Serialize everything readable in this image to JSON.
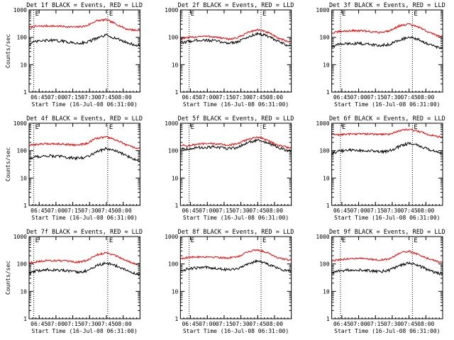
{
  "figure": {
    "background": "#ffffff",
    "axis_color": "#000000",
    "events_color": "#000000",
    "lld_color": "#ee0000",
    "marker_label": "E"
  },
  "chart_data": [
    {
      "type": "line",
      "title": "Det 1f BLACK = Events, RED = LLD",
      "ylabel": "Counts/sec",
      "xlabel": "Start Time (16-Jul-08 06:31:00)",
      "yscale": "log",
      "ylim": [
        1,
        1000
      ],
      "y_ticks": [
        "1",
        "10",
        "100",
        "1000"
      ],
      "xlim": [
        6.6,
        8.25
      ],
      "x_ticks": [
        "06:45",
        "07:00",
        "07:15",
        "07:30",
        "07:45",
        "08:00"
      ],
      "markers": [
        6.67,
        7.77
      ],
      "series": [
        {
          "name": "RED = LLD",
          "x": [
            6.6,
            6.7,
            6.9,
            7.1,
            7.3,
            7.45,
            7.6,
            7.75,
            7.9,
            8.05,
            8.2
          ],
          "values": [
            230,
            250,
            260,
            250,
            235,
            260,
            400,
            440,
            300,
            200,
            180
          ]
        },
        {
          "name": "BLACK = Events",
          "x": [
            6.6,
            6.7,
            6.9,
            7.1,
            7.3,
            7.45,
            7.6,
            7.75,
            7.9,
            8.05,
            8.2
          ],
          "values": [
            55,
            70,
            78,
            72,
            60,
            65,
            90,
            120,
            90,
            65,
            50
          ]
        }
      ]
    },
    {
      "type": "line",
      "title": "Det 2f BLACK = Events, RED = LLD",
      "ylabel": "",
      "xlabel": "Start Time (16-Jul-08 06:31:00)",
      "yscale": "log",
      "ylim": [
        1,
        1000
      ],
      "y_ticks": [
        "1",
        "10",
        "100",
        "1000"
      ],
      "xlim": [
        6.6,
        8.25
      ],
      "x_ticks": [
        "06:45",
        "07:00",
        "07:15",
        "07:30",
        "07:45",
        "08:00"
      ],
      "markers": [
        6.73,
        7.8
      ],
      "series": [
        {
          "name": "RED = LLD",
          "x": [
            6.6,
            6.7,
            6.9,
            7.1,
            7.3,
            7.45,
            7.6,
            7.75,
            7.9,
            8.05,
            8.2
          ],
          "values": [
            90,
            95,
            110,
            105,
            85,
            95,
            150,
            190,
            150,
            95,
            70
          ]
        },
        {
          "name": "BLACK = Events",
          "x": [
            6.6,
            6.7,
            6.9,
            7.1,
            7.3,
            7.45,
            7.6,
            7.75,
            7.9,
            8.05,
            8.2
          ],
          "values": [
            60,
            70,
            80,
            75,
            62,
            68,
            100,
            140,
            110,
            70,
            50
          ]
        }
      ]
    },
    {
      "type": "line",
      "title": "Det 3f BLACK = Events, RED = LLD",
      "ylabel": "",
      "xlabel": "Start Time (16-Jul-08 06:31:00)",
      "yscale": "log",
      "ylim": [
        1,
        1000
      ],
      "y_ticks": [
        "1",
        "10",
        "100",
        "1000"
      ],
      "xlim": [
        6.6,
        8.25
      ],
      "x_ticks": [
        "06:45",
        "07:00",
        "07:15",
        "07:30",
        "07:45",
        "08:00"
      ],
      "markers": [
        6.73,
        7.8
      ],
      "series": [
        {
          "name": "RED = LLD",
          "x": [
            6.6,
            6.7,
            6.9,
            7.1,
            7.3,
            7.45,
            7.6,
            7.75,
            7.9,
            8.05,
            8.2
          ],
          "values": [
            140,
            160,
            175,
            170,
            150,
            170,
            260,
            300,
            230,
            150,
            110
          ]
        },
        {
          "name": "BLACK = Events",
          "x": [
            6.6,
            6.7,
            6.9,
            7.1,
            7.3,
            7.45,
            7.6,
            7.75,
            7.9,
            8.05,
            8.2
          ],
          "values": [
            45,
            55,
            60,
            58,
            50,
            55,
            80,
            100,
            80,
            55,
            40
          ]
        }
      ]
    },
    {
      "type": "line",
      "title": "Det 4f BLACK = Events, RED = LLD",
      "ylabel": "Counts/sec",
      "xlabel": "Start Time (16-Jul-08 06:31:00)",
      "yscale": "log",
      "ylim": [
        1,
        1000
      ],
      "y_ticks": [
        "1",
        "10",
        "100",
        "1000"
      ],
      "xlim": [
        6.6,
        8.25
      ],
      "x_ticks": [
        "06:45",
        "07:00",
        "07:15",
        "07:30",
        "07:45",
        "08:00"
      ],
      "markers": [
        6.67,
        7.77
      ],
      "series": [
        {
          "name": "RED = LLD",
          "x": [
            6.6,
            6.7,
            6.9,
            7.1,
            7.3,
            7.45,
            7.6,
            7.75,
            7.9,
            8.05,
            8.2
          ],
          "values": [
            150,
            170,
            180,
            175,
            160,
            180,
            280,
            320,
            240,
            160,
            120
          ]
        },
        {
          "name": "BLACK = Events",
          "x": [
            6.6,
            6.7,
            6.9,
            7.1,
            7.3,
            7.45,
            7.6,
            7.75,
            7.9,
            8.05,
            8.2
          ],
          "values": [
            50,
            60,
            65,
            60,
            52,
            58,
            90,
            120,
            95,
            65,
            45
          ]
        }
      ]
    },
    {
      "type": "line",
      "title": "Det 5f BLACK = Events, RED = LLD",
      "ylabel": "",
      "xlabel": "Start Time (16-Jul-08 06:31:00)",
      "yscale": "log",
      "ylim": [
        1,
        1000
      ],
      "y_ticks": [
        "1",
        "10",
        "100",
        "1000"
      ],
      "xlim": [
        6.6,
        8.25
      ],
      "x_ticks": [
        "06:45",
        "07:00",
        "07:15",
        "07:30",
        "07:45",
        "08:00"
      ],
      "markers": [
        6.73,
        7.8
      ],
      "series": [
        {
          "name": "RED = LLD",
          "x": [
            6.6,
            6.7,
            6.9,
            7.1,
            7.3,
            7.45,
            7.6,
            7.75,
            7.9,
            8.05,
            8.2
          ],
          "values": [
            160,
            150,
            175,
            180,
            160,
            175,
            260,
            310,
            240,
            160,
            130
          ]
        },
        {
          "name": "BLACK = Events",
          "x": [
            6.6,
            6.7,
            6.9,
            7.1,
            7.3,
            7.45,
            7.6,
            7.75,
            7.9,
            8.05,
            8.2
          ],
          "values": [
            120,
            115,
            130,
            135,
            120,
            130,
            200,
            240,
            190,
            130,
            100
          ]
        }
      ]
    },
    {
      "type": "line",
      "title": "Det 6f BLACK = Events, RED = LLD",
      "ylabel": "",
      "xlabel": "Start Time (16-Jul-08 06:31:00)",
      "yscale": "log",
      "ylim": [
        1,
        1000
      ],
      "y_ticks": [
        "1",
        "10",
        "100",
        "1000"
      ],
      "xlim": [
        6.6,
        8.25
      ],
      "x_ticks": [
        "06:45",
        "07:00",
        "07:15",
        "07:30",
        "07:45",
        "08:00"
      ],
      "markers": [
        6.73,
        7.8
      ],
      "series": [
        {
          "name": "RED = LLD",
          "x": [
            6.6,
            6.7,
            6.9,
            7.1,
            7.3,
            7.45,
            7.6,
            7.75,
            7.9,
            8.05,
            8.2
          ],
          "values": [
            400,
            380,
            410,
            410,
            390,
            400,
            520,
            600,
            500,
            380,
            320
          ]
        },
        {
          "name": "BLACK = Events",
          "x": [
            6.6,
            6.7,
            6.9,
            7.1,
            7.3,
            7.45,
            7.6,
            7.75,
            7.9,
            8.05,
            8.2
          ],
          "values": [
            80,
            95,
            105,
            100,
            90,
            95,
            140,
            190,
            150,
            110,
            80
          ]
        }
      ]
    },
    {
      "type": "line",
      "title": "Det 7f BLACK = Events, RED = LLD",
      "ylabel": "Counts/sec",
      "xlabel": "Start Time (16-Jul-08 06:31:00)",
      "yscale": "log",
      "ylim": [
        1,
        1000
      ],
      "y_ticks": [
        "1",
        "10",
        "100",
        "1000"
      ],
      "xlim": [
        6.6,
        8.25
      ],
      "x_ticks": [
        "06:45",
        "07:00",
        "07:15",
        "07:30",
        "07:45",
        "08:00"
      ],
      "markers": [
        6.67,
        7.77
      ],
      "series": [
        {
          "name": "RED = LLD",
          "x": [
            6.6,
            6.7,
            6.9,
            7.1,
            7.3,
            7.45,
            7.6,
            7.75,
            7.9,
            8.05,
            8.2
          ],
          "values": [
            110,
            120,
            135,
            130,
            115,
            130,
            210,
            260,
            200,
            130,
            100
          ]
        },
        {
          "name": "BLACK = Events",
          "x": [
            6.6,
            6.7,
            6.9,
            7.1,
            7.3,
            7.45,
            7.6,
            7.75,
            7.9,
            8.05,
            8.2
          ],
          "values": [
            45,
            55,
            62,
            58,
            50,
            55,
            85,
            110,
            85,
            58,
            42
          ]
        }
      ]
    },
    {
      "type": "line",
      "title": "Det 8f BLACK = Events, RED = LLD",
      "ylabel": "",
      "xlabel": "Start Time (16-Jul-08 06:31:00)",
      "yscale": "log",
      "ylim": [
        1,
        1000
      ],
      "y_ticks": [
        "1",
        "10",
        "100",
        "1000"
      ],
      "xlim": [
        6.6,
        8.25
      ],
      "x_ticks": [
        "06:45",
        "07:00",
        "07:15",
        "07:30",
        "07:45",
        "08:00"
      ],
      "markers": [
        6.73,
        7.8
      ],
      "series": [
        {
          "name": "RED = LLD",
          "x": [
            6.6,
            6.7,
            6.9,
            7.1,
            7.3,
            7.45,
            7.6,
            7.75,
            7.9,
            8.05,
            8.2
          ],
          "values": [
            160,
            170,
            185,
            180,
            165,
            180,
            280,
            330,
            260,
            170,
            140
          ]
        },
        {
          "name": "BLACK = Events",
          "x": [
            6.6,
            6.7,
            6.9,
            7.1,
            7.3,
            7.45,
            7.6,
            7.75,
            7.9,
            8.05,
            8.2
          ],
          "values": [
            55,
            65,
            75,
            72,
            62,
            68,
            100,
            130,
            100,
            70,
            55
          ]
        }
      ]
    },
    {
      "type": "line",
      "title": "Det 9f BLACK = Events, RED = LLD",
      "ylabel": "",
      "xlabel": "Start Time (16-Jul-08 06:31:00)",
      "yscale": "log",
      "ylim": [
        1,
        1000
      ],
      "y_ticks": [
        "1",
        "10",
        "100",
        "1000"
      ],
      "xlim": [
        6.6,
        8.25
      ],
      "x_ticks": [
        "06:45",
        "07:00",
        "07:15",
        "07:30",
        "07:45",
        "08:00"
      ],
      "markers": [
        6.73,
        7.8
      ],
      "series": [
        {
          "name": "RED = LLD",
          "x": [
            6.6,
            6.7,
            6.9,
            7.1,
            7.3,
            7.45,
            7.6,
            7.75,
            7.9,
            8.05,
            8.2
          ],
          "values": [
            130,
            140,
            160,
            155,
            140,
            150,
            240,
            290,
            220,
            150,
            120
          ]
        },
        {
          "name": "BLACK = Events",
          "x": [
            6.6,
            6.7,
            6.9,
            7.1,
            7.3,
            7.45,
            7.6,
            7.75,
            7.9,
            8.05,
            8.2
          ],
          "values": [
            45,
            55,
            62,
            60,
            52,
            58,
            85,
            110,
            85,
            58,
            45
          ]
        }
      ]
    }
  ]
}
